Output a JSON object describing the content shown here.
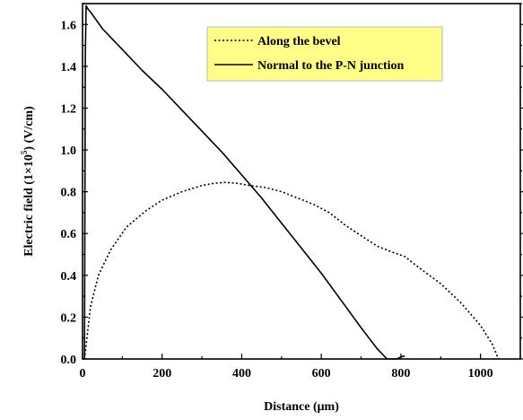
{
  "chart_data": {
    "type": "line",
    "title": "",
    "xlabel": "Distance (μm)",
    "ylabel": {
      "prefix": "Electric field (1×10",
      "exponent": "5",
      "suffix": ") (V/cm)"
    },
    "xlim": [
      0,
      1100
    ],
    "ylim": [
      0,
      1.7
    ],
    "xticks": [
      0,
      200,
      400,
      600,
      800,
      1000
    ],
    "xtick_labels": [
      "0",
      "200",
      "400",
      "600",
      "800",
      "1000"
    ],
    "yticks": [
      0.0,
      0.2,
      0.4,
      0.6,
      0.8,
      1.0,
      1.2,
      1.4,
      1.6
    ],
    "ytick_labels": [
      "0.0",
      "0.2",
      "0.4",
      "0.6",
      "0.8",
      "1.0",
      "1.2",
      "1.4",
      "1.6"
    ],
    "grid": false,
    "legend": {
      "placement": "top-center",
      "background": "#ffff88"
    },
    "series": [
      {
        "name": "Along the bevel",
        "style": "dotted",
        "color": "#000000",
        "x": [
          5,
          20,
          40,
          70,
          110,
          160,
          200,
          250,
          300,
          330,
          360,
          390,
          420,
          460,
          500,
          540,
          580,
          620,
          660,
          700,
          740,
          780,
          810,
          850,
          900,
          950,
          1000,
          1030,
          1045
        ],
        "y": [
          0.0,
          0.25,
          0.4,
          0.52,
          0.63,
          0.71,
          0.76,
          0.8,
          0.83,
          0.84,
          0.845,
          0.84,
          0.83,
          0.82,
          0.8,
          0.77,
          0.74,
          0.7,
          0.64,
          0.59,
          0.54,
          0.51,
          0.49,
          0.43,
          0.36,
          0.27,
          0.16,
          0.07,
          0.0
        ]
      },
      {
        "name": "Normal to the P-N junction",
        "style": "solid",
        "color": "#000000",
        "x": [
          5,
          7,
          9,
          12,
          15,
          20,
          50,
          100,
          150,
          200,
          250,
          300,
          350,
          400,
          450,
          500,
          550,
          600,
          650,
          700,
          740,
          765,
          770,
          790,
          800,
          810
        ],
        "y": [
          0.0,
          1.45,
          1.69,
          1.68,
          1.67,
          1.66,
          1.58,
          1.48,
          1.38,
          1.29,
          1.19,
          1.09,
          0.99,
          0.88,
          0.77,
          0.65,
          0.53,
          0.41,
          0.28,
          0.15,
          0.05,
          0.0,
          0.0,
          0.0,
          0.01,
          0.015
        ]
      }
    ]
  }
}
